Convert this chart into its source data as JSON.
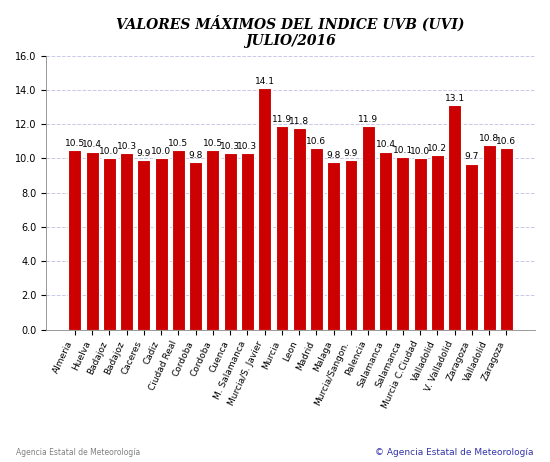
{
  "title_line1": "VALORES MÁXIMOS DEL INDICE UVB (UVI)",
  "title_line2": "JULIO/2016",
  "values": [
    10.5,
    10.4,
    10.0,
    10.3,
    9.9,
    10.0,
    10.5,
    9.8,
    10.5,
    10.3,
    10.3,
    14.1,
    11.9,
    11.8,
    10.6,
    9.8,
    9.9,
    11.9,
    10.4,
    10.1,
    10.0,
    10.2,
    13.1,
    9.7,
    10.8,
    10.6
  ],
  "xlabels": [
    "Almeria",
    "Huelva",
    "Badajoz",
    "Badajoz",
    "Caceres",
    "Cadiz",
    "Ciudad Real",
    "Cordoba",
    "Cordoba",
    "Cuenca",
    "M. Salamanca",
    "Murcia/S. Javier",
    "Murcia",
    "Leon",
    "Madrid",
    "Malaga",
    "Murcia/Sangon.",
    "Palencia",
    "Salamanca",
    "Salamanca",
    "Murcia C.Ciudad",
    "Valladolid",
    "V. Valladolid",
    "Zaragoza",
    "Valladolid",
    "Zaragoza"
  ],
  "bar_color": "#cc0000",
  "bar_edge_color": "#ffffff",
  "ylim": [
    0,
    16.0
  ],
  "yticks": [
    0.0,
    2.0,
    4.0,
    6.0,
    8.0,
    10.0,
    12.0,
    14.0,
    16.0
  ],
  "grid_color": "#c8c8e8",
  "background_color": "#ffffff",
  "title_fontsize": 10,
  "value_fontsize": 6.5,
  "tick_fontsize": 7,
  "xlabel_fontsize": 6.5,
  "copyright_text": "© Agencia Estatal de Meteorología",
  "copyright_color": "#3333aa"
}
